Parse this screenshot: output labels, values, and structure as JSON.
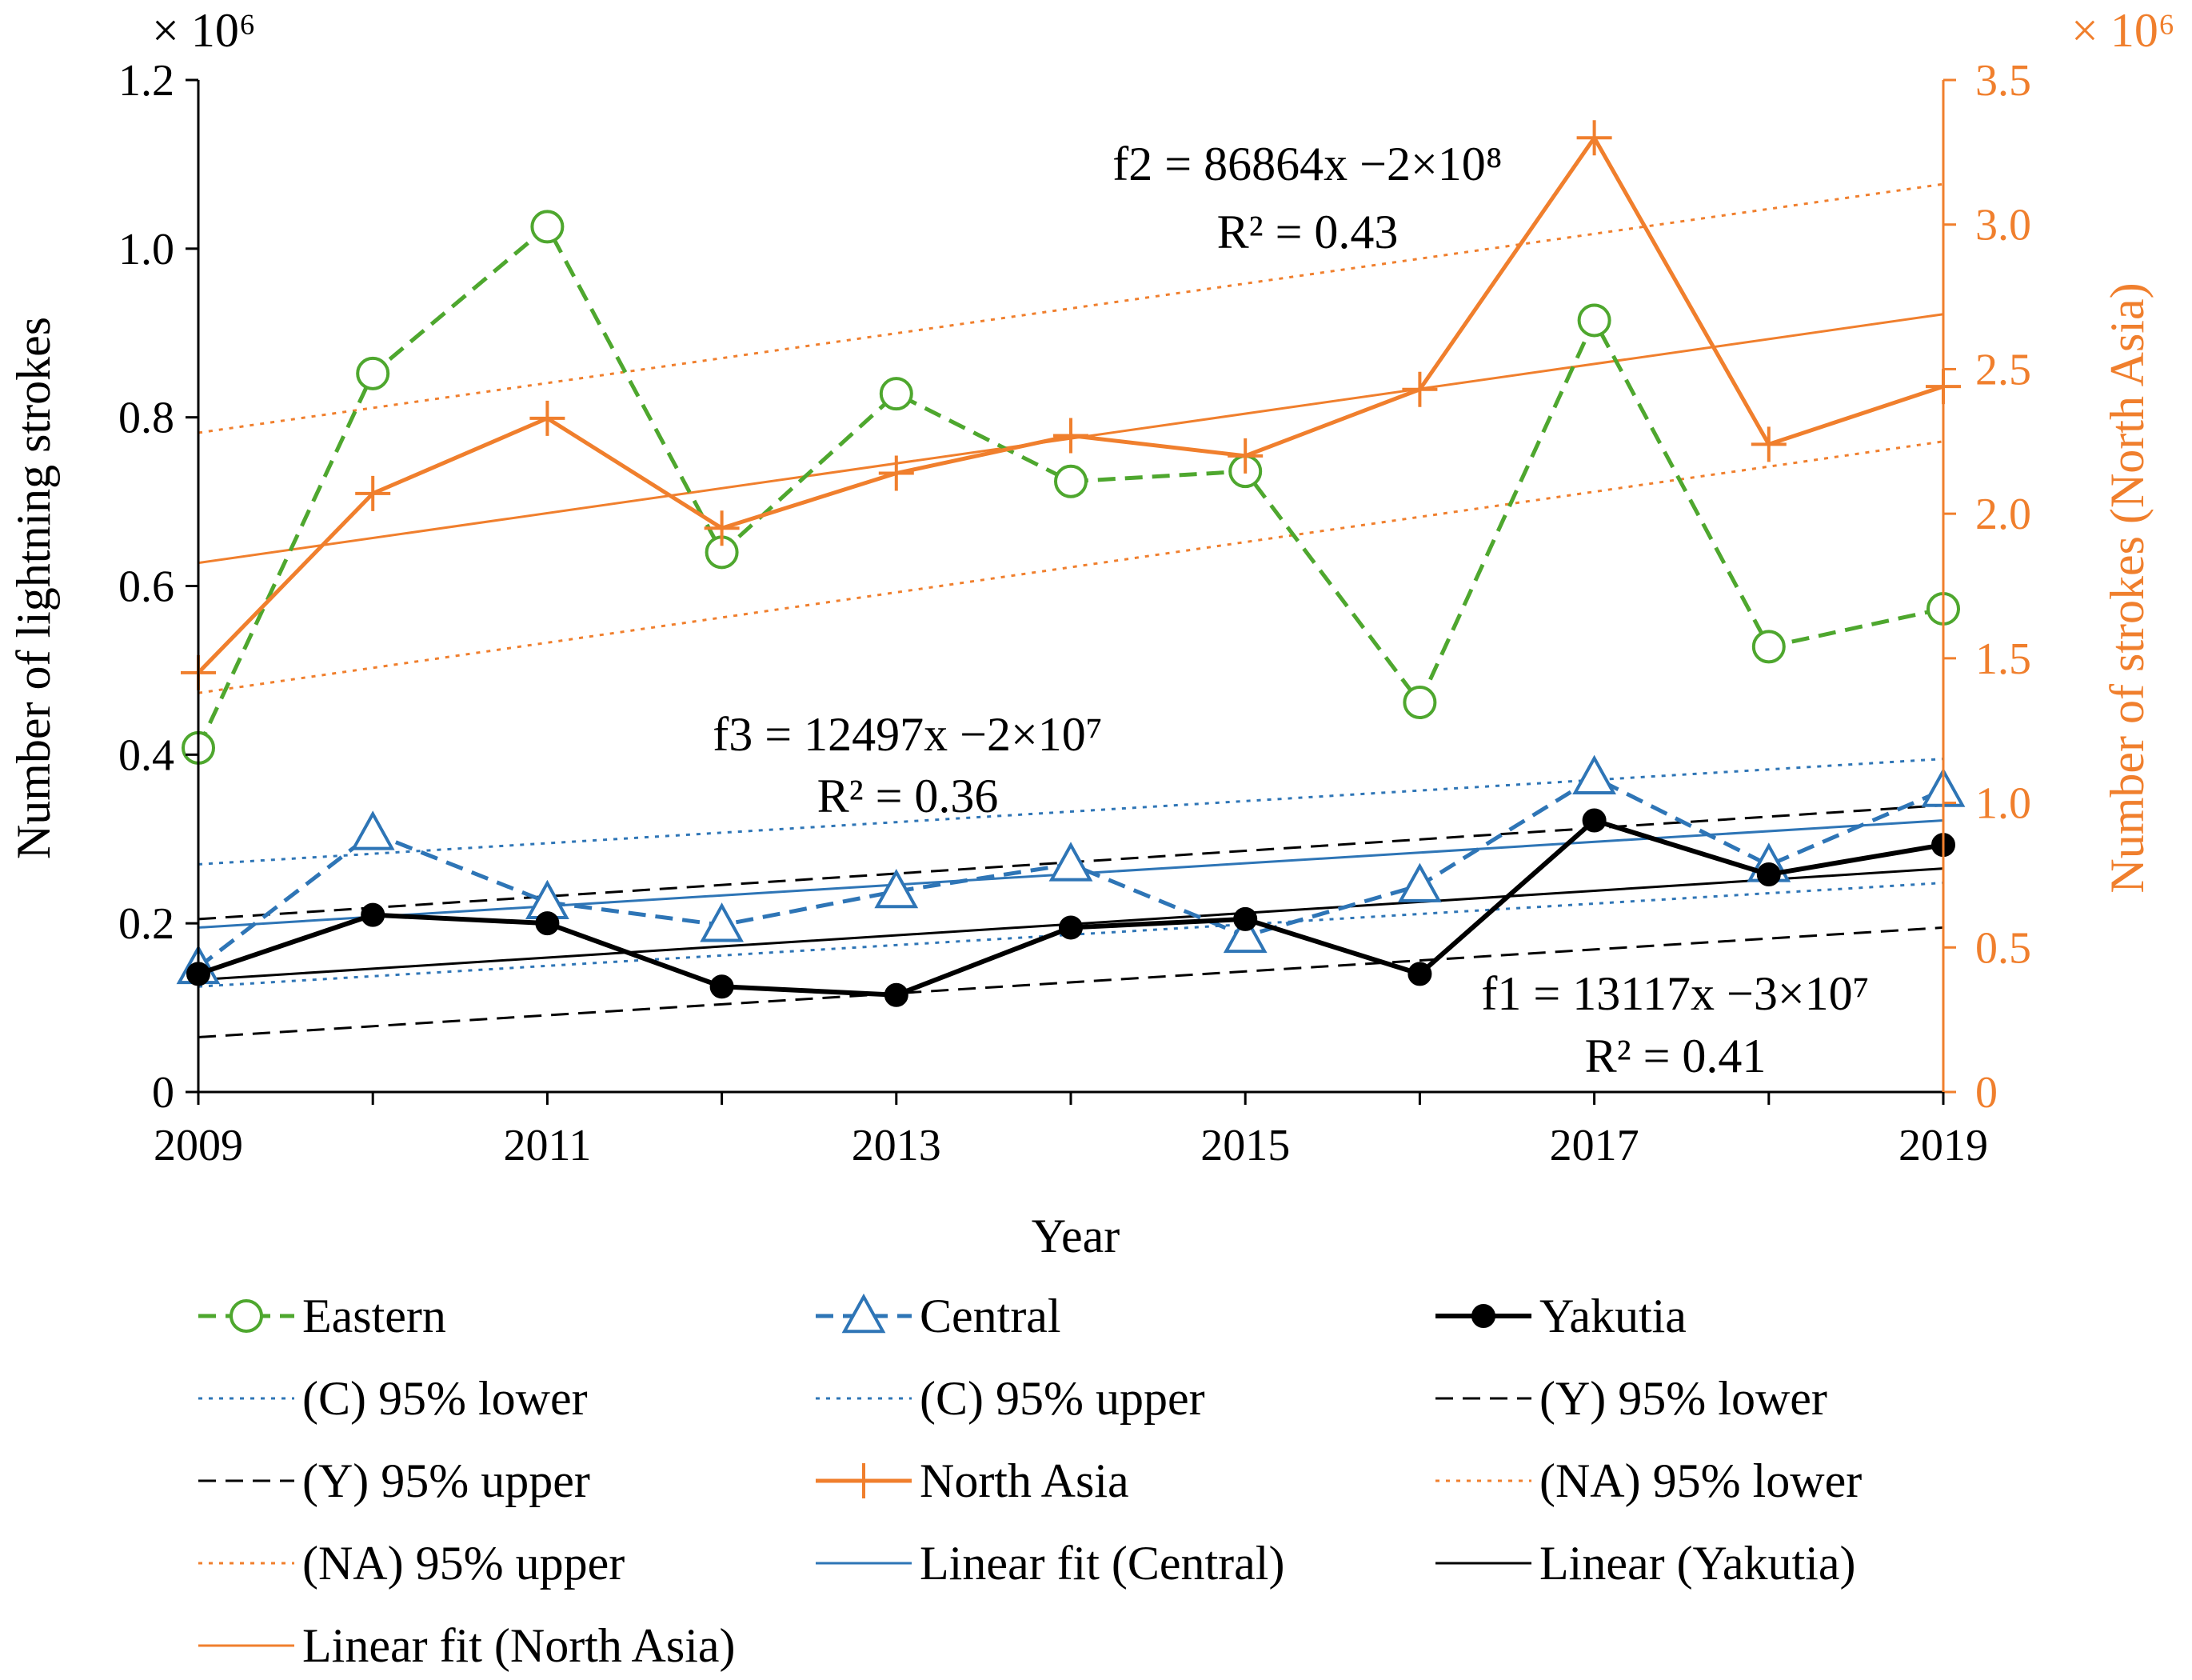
{
  "chart_data": {
    "type": "line",
    "xlabel": "Year",
    "ylabel_left": "Number of lightning strokes",
    "ylabel_right": "Number of strokes (North Asia)",
    "left_multiplier": "× 10⁶",
    "right_multiplier": "× 10⁶",
    "x": [
      2009,
      2010,
      2011,
      2012,
      2013,
      2014,
      2015,
      2016,
      2017,
      2018,
      2019
    ],
    "x_ticks": [
      "2009",
      "2011",
      "2013",
      "2015",
      "2017",
      "2019"
    ],
    "xlim": [
      2009,
      2019
    ],
    "ylim_left": [
      0,
      1.2
    ],
    "ylim_right": [
      0,
      3.5
    ],
    "left_ticks": [
      "0",
      "0.2",
      "0.4",
      "0.6",
      "0.8",
      "1.0",
      "1.2"
    ],
    "right_ticks": [
      "0",
      "0.5",
      "1.0",
      "1.5",
      "2.0",
      "2.5",
      "3.0",
      "3.5"
    ],
    "series": [
      {
        "name": "Eastern",
        "axis": "left",
        "color": "#4EA72E",
        "dash": "dashed",
        "marker": "circle",
        "values": [
          0.408,
          0.852,
          1.026,
          0.64,
          0.828,
          0.724,
          0.736,
          0.462,
          0.915,
          0.528,
          0.573
        ]
      },
      {
        "name": "Central",
        "axis": "left",
        "color": "#2E75B6",
        "dash": "dashed",
        "marker": "triangle",
        "values": [
          0.148,
          0.307,
          0.225,
          0.198,
          0.238,
          0.27,
          0.185,
          0.245,
          0.373,
          0.269,
          0.358
        ]
      },
      {
        "name": "Yakutia",
        "axis": "left",
        "color": "#000000",
        "dash": "solid",
        "marker": "dot",
        "values": [
          0.14,
          0.21,
          0.2,
          0.125,
          0.115,
          0.195,
          0.205,
          0.14,
          0.322,
          0.258,
          0.293
        ]
      },
      {
        "name": "North Asia",
        "axis": "right",
        "color": "#F07F2D",
        "dash": "solid",
        "marker": "plus",
        "values": [
          1.45,
          2.07,
          2.33,
          1.95,
          2.14,
          2.27,
          2.2,
          2.43,
          3.3,
          2.24,
          2.44
        ]
      }
    ],
    "fit_lines": [
      {
        "name": "(C) 95% lower",
        "axis": "left",
        "color": "#2E75B6",
        "dash": "dotted",
        "endpoints": [
          [
            2009,
            0.125
          ],
          [
            2019,
            0.248
          ]
        ]
      },
      {
        "name": "(C) 95% upper",
        "axis": "left",
        "color": "#2E75B6",
        "dash": "dotted",
        "endpoints": [
          [
            2009,
            0.27
          ],
          [
            2019,
            0.395
          ]
        ]
      },
      {
        "name": "(Y) 95% lower",
        "axis": "left",
        "color": "#000000",
        "dash": "dashed",
        "endpoints": [
          [
            2009,
            0.065
          ],
          [
            2019,
            0.195
          ]
        ]
      },
      {
        "name": "(Y) 95% upper",
        "axis": "left",
        "color": "#000000",
        "dash": "dashed",
        "endpoints": [
          [
            2009,
            0.205
          ],
          [
            2019,
            0.34
          ]
        ]
      },
      {
        "name": "(NA) 95% lower",
        "axis": "right",
        "color": "#F07F2D",
        "dash": "dotted",
        "endpoints": [
          [
            2009,
            1.38
          ],
          [
            2019,
            2.25
          ]
        ]
      },
      {
        "name": "(NA) 95% upper",
        "axis": "right",
        "color": "#F07F2D",
        "dash": "dotted",
        "endpoints": [
          [
            2009,
            2.28
          ],
          [
            2019,
            3.14
          ]
        ]
      },
      {
        "name": "Linear fit (Central)",
        "axis": "left",
        "color": "#2E75B6",
        "dash": "solid",
        "endpoints": [
          [
            2009,
            0.195
          ],
          [
            2019,
            0.322
          ]
        ]
      },
      {
        "name": "Linear (Yakutia)",
        "axis": "left",
        "color": "#000000",
        "dash": "solid",
        "endpoints": [
          [
            2009,
            0.133
          ],
          [
            2019,
            0.265
          ]
        ]
      },
      {
        "name": "Linear fit (North Asia)",
        "axis": "right",
        "color": "#F07F2D",
        "dash": "solid",
        "endpoints": [
          [
            2009,
            1.83
          ],
          [
            2019,
            2.69
          ]
        ]
      }
    ],
    "annotations": {
      "f2_line1": "f2 = 86864x −2×10⁸",
      "f2_line2": "R² = 0.43",
      "f3_line1": "f3 = 12497x −2×10⁷",
      "f3_line2": "R² = 0.36",
      "f1_line1": "f1 = 13117x −3×10⁷",
      "f1_line2": "R² = 0.41"
    },
    "legend": [
      {
        "label": "Eastern",
        "color": "#4EA72E",
        "dash": "dashed",
        "marker": "circle"
      },
      {
        "label": "Central",
        "color": "#2E75B6",
        "dash": "dashed",
        "marker": "triangle"
      },
      {
        "label": "Yakutia",
        "color": "#000000",
        "dash": "solid",
        "marker": "dot"
      },
      {
        "label": "(C) 95% lower",
        "color": "#2E75B6",
        "dash": "dotted",
        "marker": "none"
      },
      {
        "label": "(C) 95% upper",
        "color": "#2E75B6",
        "dash": "dotted",
        "marker": "none"
      },
      {
        "label": "(Y) 95% lower",
        "color": "#000000",
        "dash": "dashed",
        "marker": "none"
      },
      {
        "label": "(Y) 95% upper",
        "color": "#000000",
        "dash": "dashed",
        "marker": "none"
      },
      {
        "label": "North Asia",
        "color": "#F07F2D",
        "dash": "solid",
        "marker": "plus"
      },
      {
        "label": "(NA) 95% lower",
        "color": "#F07F2D",
        "dash": "dotted",
        "marker": "none"
      },
      {
        "label": "(NA) 95% upper",
        "color": "#F07F2D",
        "dash": "dotted",
        "marker": "none"
      },
      {
        "label": "Linear fit (Central)",
        "color": "#2E75B6",
        "dash": "solid",
        "marker": "none"
      },
      {
        "label": "Linear (Yakutia)",
        "color": "#000000",
        "dash": "solid",
        "marker": "none"
      },
      {
        "label": "Linear fit (North Asia)",
        "color": "#F07F2D",
        "dash": "solid",
        "marker": "none"
      }
    ]
  }
}
